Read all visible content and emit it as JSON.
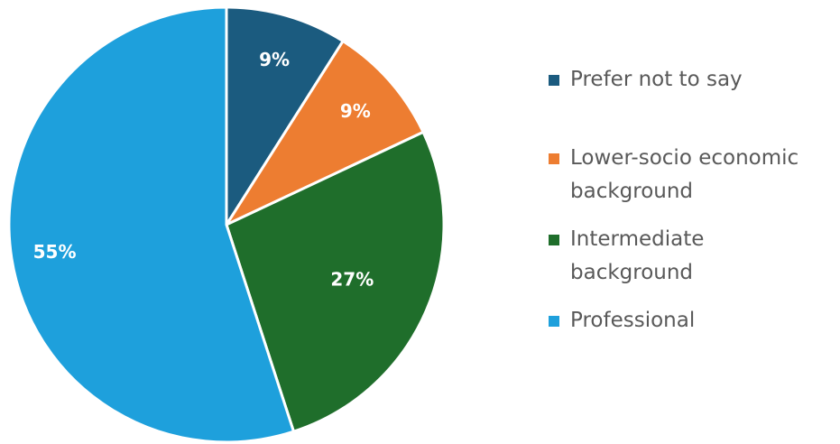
{
  "chart_data": {
    "type": "pie",
    "categories": [
      "Prefer not to say",
      "Lower-socio economic\nbackground",
      "Intermediate\nbackground",
      "Professional"
    ],
    "values": [
      9,
      9,
      27,
      55
    ],
    "labels": [
      "9%",
      "9%",
      "27%",
      "55%"
    ],
    "colors": [
      "#1b5b7f",
      "#ed7d31",
      "#1f6e2b",
      "#1ea0dc"
    ],
    "title": "",
    "legend_position": "right"
  }
}
